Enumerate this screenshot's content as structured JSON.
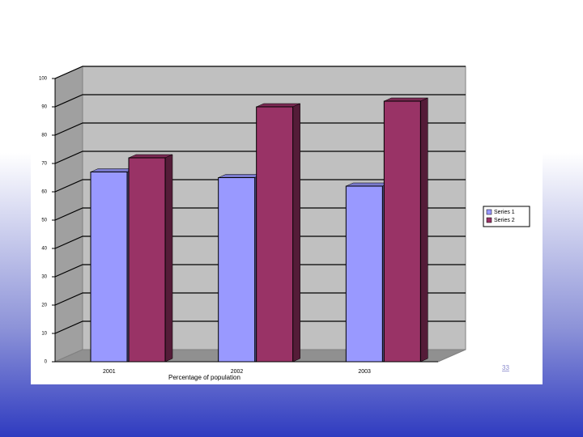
{
  "chart_data": {
    "type": "bar",
    "categories": [
      "2001",
      "2002",
      "2003"
    ],
    "x_label": "Percentage of population",
    "series": [
      {
        "name": "Series 1",
        "color": "#9999ff",
        "values": [
          67,
          65,
          62
        ]
      },
      {
        "name": "Series 2",
        "color": "#993366",
        "values": [
          72,
          90,
          92
        ]
      }
    ],
    "ylim": [
      0,
      100
    ],
    "yticks": [
      0,
      10,
      20,
      30,
      40,
      50,
      60,
      70,
      80,
      90,
      100
    ],
    "grid": true,
    "legend": "right"
  },
  "page_number": "33"
}
